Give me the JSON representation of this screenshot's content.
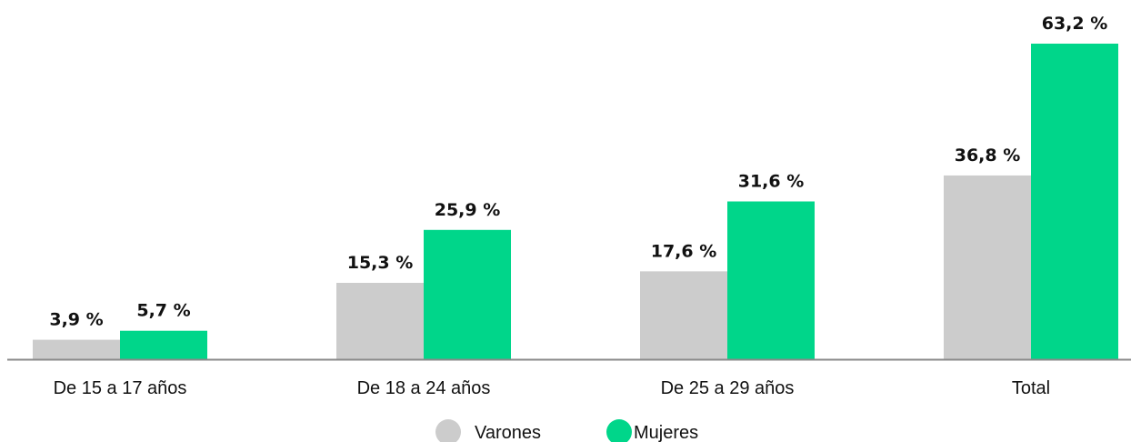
{
  "chart_data": {
    "type": "bar",
    "categories": [
      "De 15 a 17 años",
      "De 18 a 24 años",
      "De 25 a 29 años",
      "Total"
    ],
    "series": [
      {
        "name": "Varones",
        "color": "#cccccc",
        "values": [
          3.9,
          15.3,
          17.6,
          36.8
        ],
        "labels": [
          "3,9 %",
          "15,3 %",
          "17,6 %",
          "36,8 %"
        ]
      },
      {
        "name": "Mujeres",
        "color": "#00d68a",
        "values": [
          5.7,
          25.9,
          31.6,
          63.2
        ],
        "labels": [
          "5,7 %",
          "25,9 %",
          "31,6 %",
          "63,2 %"
        ]
      }
    ],
    "ylim": [
      0,
      63.2
    ],
    "grid": false,
    "legend_position": "bottom-center",
    "axis_color": "#8a8a8a"
  }
}
